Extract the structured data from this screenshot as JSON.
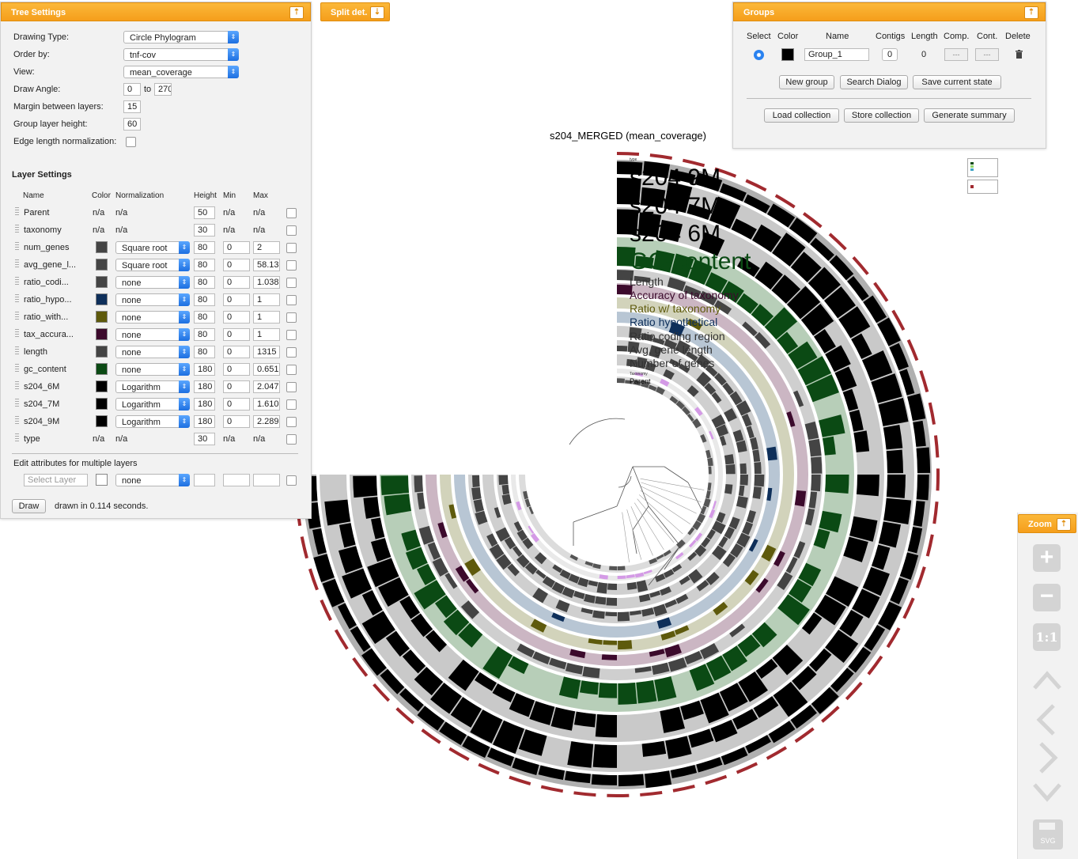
{
  "tree_settings": {
    "title": "Tree Settings",
    "drawing_type_label": "Drawing Type:",
    "drawing_type": "Circle Phylogram",
    "order_by_label": "Order by:",
    "order_by": "tnf-cov",
    "view_label": "View:",
    "view": "mean_coverage",
    "draw_angle_label": "Draw Angle:",
    "draw_angle_from": "0",
    "draw_angle_to_label": "to",
    "draw_angle_to": "270",
    "margin_label": "Margin between layers:",
    "margin": "15",
    "group_height_label": "Group layer height:",
    "group_height": "60",
    "edge_norm_label": "Edge length normalization:"
  },
  "layer_settings": {
    "title": "Layer Settings",
    "headers": {
      "name": "Name",
      "color": "Color",
      "normalization": "Normalization",
      "height": "Height",
      "min": "Min",
      "max": "Max"
    },
    "layers": [
      {
        "name": "Parent",
        "color": "n/a",
        "norm": "n/a",
        "height": "50",
        "min": "n/a",
        "max": "n/a"
      },
      {
        "name": "taxonomy",
        "color": "n/a",
        "norm": "n/a",
        "height": "30",
        "min": "n/a",
        "max": "n/a"
      },
      {
        "name": "num_genes",
        "color": "#444444",
        "norm": "Square root",
        "height": "80",
        "min": "0",
        "max": "2"
      },
      {
        "name": "avg_gene_l...",
        "color": "#444444",
        "norm": "Square root",
        "height": "80",
        "min": "0",
        "max": "58.13"
      },
      {
        "name": "ratio_codi...",
        "color": "#444444",
        "norm": "none",
        "height": "80",
        "min": "0",
        "max": "1.038"
      },
      {
        "name": "ratio_hypo...",
        "color": "#0e2f5a",
        "norm": "none",
        "height": "80",
        "min": "0",
        "max": "1"
      },
      {
        "name": "ratio_with...",
        "color": "#5e5a0c",
        "norm": "none",
        "height": "80",
        "min": "0",
        "max": "1"
      },
      {
        "name": "tax_accura...",
        "color": "#3c0a2c",
        "norm": "none",
        "height": "80",
        "min": "0",
        "max": "1"
      },
      {
        "name": "length",
        "color": "#444444",
        "norm": "none",
        "height": "80",
        "min": "0",
        "max": "1315"
      },
      {
        "name": "gc_content",
        "color": "#0b4a14",
        "norm": "none",
        "height": "180",
        "min": "0",
        "max": "0.651"
      },
      {
        "name": "s204_6M",
        "color": "#000000",
        "norm": "Logarithm",
        "height": "180",
        "min": "0",
        "max": "2.047"
      },
      {
        "name": "s204_7M",
        "color": "#000000",
        "norm": "Logarithm",
        "height": "180",
        "min": "0",
        "max": "1.610"
      },
      {
        "name": "s204_9M",
        "color": "#000000",
        "norm": "Logarithm",
        "height": "180",
        "min": "0",
        "max": "2.289"
      },
      {
        "name": "type",
        "color": "n/a",
        "norm": "n/a",
        "height": "30",
        "min": "n/a",
        "max": "n/a"
      }
    ],
    "edit_multi_label": "Edit attributes for multiple layers",
    "select_layer_placeholder": "Select Layer",
    "edit_multi_norm": "none",
    "draw_button": "Draw",
    "draw_status": "drawn in 0.114 seconds."
  },
  "split_det": {
    "title": "Split det."
  },
  "groups": {
    "title": "Groups",
    "headers": {
      "select": "Select",
      "color": "Color",
      "name": "Name",
      "contigs": "Contigs",
      "length": "Length",
      "comp": "Comp.",
      "cont": "Cont.",
      "delete": "Delete"
    },
    "group": {
      "name": "Group_1",
      "color": "#000000",
      "contigs": "0",
      "length": "0",
      "comp": "---",
      "cont": "---"
    },
    "new_group": "New group",
    "search_dialog": "Search Dialog",
    "save_state": "Save current state",
    "load_collection": "Load collection",
    "store_collection": "Store collection",
    "generate_summary": "Generate summary"
  },
  "tree": {
    "title": "s204_MERGED (mean_coverage)",
    "layer_labels": [
      "s204 9M",
      "s204 7M",
      "s204 6M",
      "GC-content",
      "Length",
      "Accuracy of taxonomy",
      "Ratio w/ taxonomy",
      "Ratio hypothetical",
      "Ratio coding region",
      "Avg. gene length",
      "Number of genes",
      "Taxonomy",
      "Parent"
    ],
    "label_colors": [
      "#000000",
      "#000000",
      "#000000",
      "#0b4a14",
      "#333333",
      "#3c0a2c",
      "#5e5a0c",
      "#0e2f5a",
      "#333333",
      "#333333",
      "#333333",
      "#333333",
      "#000000"
    ],
    "legend_type": "type"
  },
  "zoom": {
    "title": "Zoom",
    "plus": "+",
    "minus": "−",
    "reset": "1:1",
    "save_label": "SVG"
  }
}
